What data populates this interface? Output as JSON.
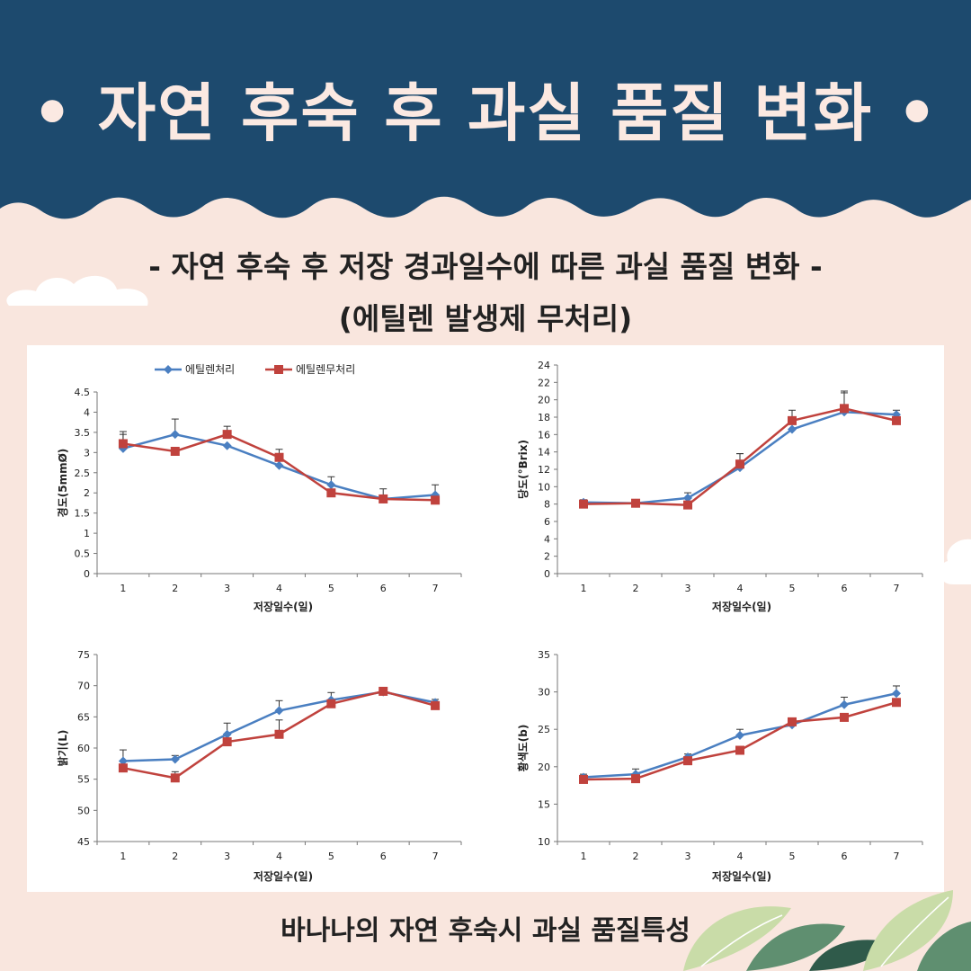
{
  "header": {
    "title": "• 자연 후숙 후 과실 품질  변화 •",
    "bg_color": "#1d4a6e"
  },
  "subtitle_line1": "- 자연 후숙 후 저장 경과일수에 따른 과실 품질 변화 -",
  "subtitle_line2": "(에틸렌 발생제 무처리)",
  "caption": "바나나의 자연 후숙시 과실 품질특성",
  "colors": {
    "series1": "#4a7fc1",
    "series2": "#c0423d",
    "background": "#f9e6de"
  },
  "chart_data": [
    {
      "type": "line",
      "xlabel": "저장일수(일)",
      "ylabel": "경도(5mmØ)",
      "x": [
        1,
        2,
        3,
        4,
        5,
        6,
        7
      ],
      "ylim": [
        0,
        4.5
      ],
      "yticks": [
        0,
        0.5,
        1,
        1.5,
        2,
        2.5,
        3,
        3.5,
        4,
        4.5
      ],
      "ytick_labels": [
        "0",
        "0.5",
        "1",
        "1.5",
        "2",
        "2.5",
        "3",
        "3.5",
        "4",
        "4.5"
      ],
      "legend": "top",
      "series": [
        {
          "name": "에틸렌처리",
          "values": [
            3.1,
            3.45,
            3.17,
            2.68,
            2.2,
            1.85,
            1.95
          ],
          "error": [
            0.35,
            0.38,
            0.0,
            0.0,
            0.2,
            0.25,
            0.25
          ]
        },
        {
          "name": "에틸렌무처리",
          "values": [
            3.22,
            3.03,
            3.45,
            2.88,
            2.0,
            1.85,
            1.82
          ],
          "error": [
            0.3,
            0.0,
            0.2,
            0.2,
            0.0,
            0.0,
            0.0
          ]
        }
      ]
    },
    {
      "type": "line",
      "xlabel": "저장일수(일)",
      "ylabel": "당도(°Brix)",
      "x": [
        1,
        2,
        3,
        4,
        5,
        6,
        7
      ],
      "ylim": [
        0,
        24
      ],
      "yticks": [
        0,
        2,
        4,
        6,
        8,
        10,
        12,
        14,
        16,
        18,
        20,
        22,
        24
      ],
      "ytick_labels": [
        "0",
        "2",
        "4",
        "6",
        "8",
        "10",
        "12",
        "14",
        "16",
        "18",
        "20",
        "22",
        "24"
      ],
      "series": [
        {
          "name": "에틸렌처리",
          "values": [
            8.2,
            8.1,
            8.7,
            12.2,
            16.6,
            18.6,
            18.3
          ],
          "error": [
            0.3,
            0.2,
            0.6,
            1.6,
            0.0,
            2.4,
            0.5
          ]
        },
        {
          "name": "에틸렌무처리",
          "values": [
            8.0,
            8.1,
            7.9,
            12.6,
            17.6,
            19.0,
            17.6
          ],
          "error": [
            0.0,
            0.0,
            0.0,
            1.2,
            1.2,
            1.8,
            0.0
          ]
        }
      ]
    },
    {
      "type": "line",
      "xlabel": "저장일수(일)",
      "ylabel": "밝기(L)",
      "x": [
        1,
        2,
        3,
        4,
        5,
        6,
        7
      ],
      "ylim": [
        45,
        75
      ],
      "yticks": [
        45,
        50,
        55,
        60,
        65,
        70,
        75
      ],
      "ytick_labels": [
        "45",
        "50",
        "55",
        "60",
        "65",
        "70",
        "75"
      ],
      "series": [
        {
          "name": "에틸렌처리",
          "values": [
            57.9,
            58.2,
            62.2,
            66.0,
            67.7,
            69.0,
            67.3
          ],
          "error": [
            1.8,
            0.6,
            1.8,
            1.6,
            1.2,
            0.6,
            0.5
          ]
        },
        {
          "name": "에틸렌무처리",
          "values": [
            56.8,
            55.2,
            61.0,
            62.2,
            67.1,
            69.1,
            66.8
          ],
          "error": [
            0.0,
            1.0,
            0.0,
            2.3,
            0.0,
            0.0,
            0.0
          ]
        }
      ]
    },
    {
      "type": "line",
      "xlabel": "저장일수(일)",
      "ylabel": "황색도(b)",
      "x": [
        1,
        2,
        3,
        4,
        5,
        6,
        7
      ],
      "ylim": [
        10,
        35
      ],
      "yticks": [
        10,
        15,
        20,
        25,
        30,
        35
      ],
      "ytick_labels": [
        "10",
        "15",
        "20",
        "25",
        "30",
        "35"
      ],
      "series": [
        {
          "name": "에틸렌처리",
          "values": [
            18.6,
            19.0,
            21.3,
            24.2,
            25.6,
            28.3,
            29.8
          ],
          "error": [
            0.4,
            0.7,
            0.4,
            0.8,
            0.3,
            1.0,
            1.0
          ]
        },
        {
          "name": "에틸렌무처리",
          "values": [
            18.3,
            18.4,
            20.8,
            22.2,
            26.0,
            26.6,
            28.6
          ],
          "error": [
            0.0,
            0.0,
            0.0,
            0.4,
            0.0,
            0.0,
            0.0
          ]
        }
      ]
    }
  ]
}
